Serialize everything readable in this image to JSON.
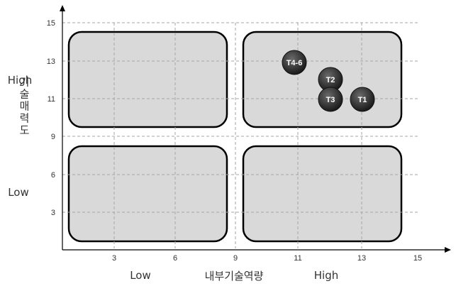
{
  "chart_data": {
    "type": "scatter",
    "x_ticks": [
      "3",
      "6",
      "9",
      "11",
      "13",
      "15"
    ],
    "y_ticks": [
      "15",
      "13",
      "11",
      "9",
      "6",
      "3"
    ],
    "xlabel": "내부기술역량",
    "ylabel": "기술매력도",
    "x_low_label": "Low",
    "x_high_label": "High",
    "y_low_label": "Low",
    "y_high_label": "High",
    "grid": true,
    "points": [
      {
        "label": "T4-6",
        "x": 11,
        "y": 13
      },
      {
        "label": "T2",
        "x": 12,
        "y": 12
      },
      {
        "label": "T3",
        "x": 12,
        "y": 11
      },
      {
        "label": "T1",
        "x": 13,
        "y": 11
      }
    ]
  },
  "colors": {
    "quadrant_fill": "#d9d9d9",
    "quadrant_border": "#000000",
    "point_fill": "#3a3a3a",
    "grid": "#a6a6a6"
  }
}
